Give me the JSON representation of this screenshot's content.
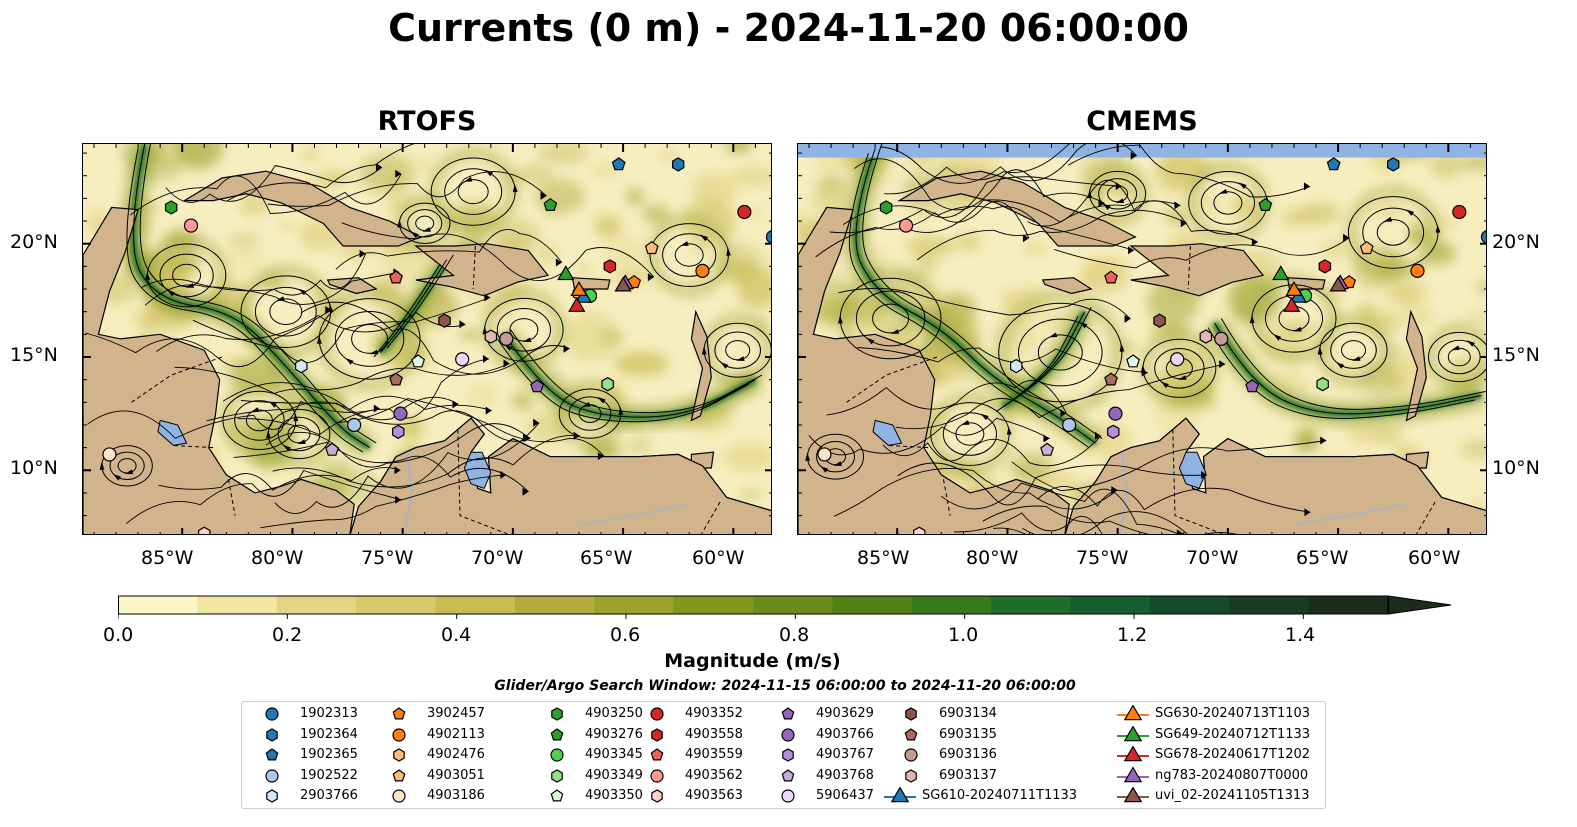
{
  "figure": {
    "title": "Currents (0 m) - 2024-11-20 06:00:00",
    "panels": [
      {
        "title": "RTOFS"
      },
      {
        "title": "CMEMS"
      }
    ],
    "lon_ticks": [
      "85°W",
      "80°W",
      "75°W",
      "70°W",
      "65°W",
      "60°W"
    ],
    "lat_ticks": [
      "20°N",
      "15°N",
      "10°N"
    ],
    "lon_range": [
      -89.5,
      -58.2
    ],
    "lat_range": [
      7.1,
      24.4
    ]
  },
  "colorbar": {
    "label": "Magnitude (m/s)",
    "ticks": [
      "0.0",
      "0.2",
      "0.4",
      "0.6",
      "0.8",
      "1.0",
      "1.2",
      "1.4"
    ],
    "range": [
      0,
      1.5
    ],
    "extend": "max",
    "colors": [
      "#fbf6c7",
      "#f2e6a4",
      "#e6d486",
      "#dac86c",
      "#cbbc52",
      "#b4ac3e",
      "#9aa22c",
      "#83971e",
      "#6a8c18",
      "#528216",
      "#397a1c",
      "#1f6e2c",
      "#145e30",
      "#154a2a",
      "#1a3a22",
      "#1c2c1a"
    ]
  },
  "search_window": "Glider/Argo Search Window: 2024-11-15 06:00:00 to 2024-11-20 06:00:00",
  "colors": {
    "land": "#d2b48c",
    "water_light": "#f7eec0",
    "strong_current": "#1f6e2c",
    "lakes": "#8fb4e3"
  },
  "legend": [
    {
      "label": "1902313",
      "marker": "circle",
      "color": "#1f77b4"
    },
    {
      "label": "1902364",
      "marker": "hexagon",
      "color": "#1f77b4"
    },
    {
      "label": "1902365",
      "marker": "pentagon",
      "color": "#1f77b4"
    },
    {
      "label": "1902522",
      "marker": "circle",
      "color": "#aec7e8"
    },
    {
      "label": "2903766",
      "marker": "hexagon",
      "color": "#d6e8f8"
    },
    {
      "label": "3902457",
      "marker": "pentagon",
      "color": "#ff7f0e"
    },
    {
      "label": "4902113",
      "marker": "circle",
      "color": "#ff7f0e"
    },
    {
      "label": "4902476",
      "marker": "hexagon",
      "color": "#ffbb78"
    },
    {
      "label": "4903051",
      "marker": "pentagon",
      "color": "#ffbb78"
    },
    {
      "label": "4903186",
      "marker": "circle",
      "color": "#ffe4c4"
    },
    {
      "label": "4903250",
      "marker": "hexagon",
      "color": "#2ca02c"
    },
    {
      "label": "4903276",
      "marker": "pentagon",
      "color": "#2ca02c"
    },
    {
      "label": "4903345",
      "marker": "circle",
      "color": "#4fd14f"
    },
    {
      "label": "4903349",
      "marker": "hexagon",
      "color": "#98df8a"
    },
    {
      "label": "4903350",
      "marker": "pentagon",
      "color": "#dcfadc"
    },
    {
      "label": "4903352",
      "marker": "circle",
      "color": "#d62728"
    },
    {
      "label": "4903558",
      "marker": "hexagon",
      "color": "#d62728"
    },
    {
      "label": "4903559",
      "marker": "pentagon",
      "color": "#e8625e"
    },
    {
      "label": "4903562",
      "marker": "circle",
      "color": "#ff9896"
    },
    {
      "label": "4903563",
      "marker": "hexagon",
      "color": "#ffd0ce"
    },
    {
      "label": "4903629",
      "marker": "pentagon",
      "color": "#9467bd"
    },
    {
      "label": "4903766",
      "marker": "circle",
      "color": "#9467bd"
    },
    {
      "label": "4903767",
      "marker": "hexagon",
      "color": "#b58ee0"
    },
    {
      "label": "4903768",
      "marker": "pentagon",
      "color": "#c5b0d5"
    },
    {
      "label": "5906437",
      "marker": "circle",
      "color": "#ead8f8"
    },
    {
      "label": "6903134",
      "marker": "hexagon",
      "color": "#8c564b"
    },
    {
      "label": "6903135",
      "marker": "pentagon",
      "color": "#a86b5e"
    },
    {
      "label": "6903136",
      "marker": "circle",
      "color": "#c49c94"
    },
    {
      "label": "6903137",
      "marker": "hexagon",
      "color": "#e0b8b0"
    },
    {
      "label": "SG610-20240711T1133",
      "marker": "triangle-line",
      "color": "#1f77b4"
    },
    {
      "label": "SG630-20240713T1103",
      "marker": "triangle-line",
      "color": "#ff7f0e"
    },
    {
      "label": "SG649-20240712T1133",
      "marker": "triangle-line",
      "color": "#2ca02c"
    },
    {
      "label": "SG678-20240617T1202",
      "marker": "triangle-line",
      "color": "#d62728"
    },
    {
      "label": "ng783-20240807T0000",
      "marker": "triangle-line",
      "color": "#9467bd"
    },
    {
      "label": "uvi_02-20241105T1313",
      "marker": "triangle-line",
      "color": "#8c564b"
    }
  ],
  "observations": [
    {
      "id": "1902313",
      "lon": -58.2,
      "lat": 20.3
    },
    {
      "id": "1902364",
      "lon": -62.5,
      "lat": 23.5
    },
    {
      "id": "1902365",
      "lon": -65.2,
      "lat": 23.5
    },
    {
      "id": "1902522",
      "lon": -77.2,
      "lat": 12.0
    },
    {
      "id": "2903766",
      "lon": -79.6,
      "lat": 14.6
    },
    {
      "id": "3902457",
      "lon": -64.5,
      "lat": 18.3
    },
    {
      "id": "4902113",
      "lon": -61.4,
      "lat": 18.8
    },
    {
      "id": "4902476",
      "lon": -67.0,
      "lat": 17.8
    },
    {
      "id": "4903051",
      "lon": -63.7,
      "lat": 19.8
    },
    {
      "id": "4903186",
      "lon": -88.3,
      "lat": 10.7
    },
    {
      "id": "4903250",
      "lon": -85.5,
      "lat": 21.6
    },
    {
      "id": "4903276",
      "lon": -68.3,
      "lat": 21.7
    },
    {
      "id": "4903345",
      "lon": -66.5,
      "lat": 17.7
    },
    {
      "id": "4903349",
      "lon": -65.7,
      "lat": 13.8
    },
    {
      "id": "4903350",
      "lon": -74.3,
      "lat": 14.8
    },
    {
      "id": "4903352",
      "lon": -59.5,
      "lat": 21.4
    },
    {
      "id": "4903558",
      "lon": -65.6,
      "lat": 19.0
    },
    {
      "id": "4903559",
      "lon": -75.3,
      "lat": 18.5
    },
    {
      "id": "4903562",
      "lon": -84.6,
      "lat": 20.8
    },
    {
      "id": "4903563",
      "lon": -84.0,
      "lat": 7.2
    },
    {
      "id": "4903629",
      "lon": -68.9,
      "lat": 13.7
    },
    {
      "id": "4903766",
      "lon": -75.1,
      "lat": 12.5
    },
    {
      "id": "4903767",
      "lon": -75.2,
      "lat": 11.7
    },
    {
      "id": "4903768",
      "lon": -78.2,
      "lat": 10.9
    },
    {
      "id": "5906437",
      "lon": -72.3,
      "lat": 14.9
    },
    {
      "id": "6903134",
      "lon": -73.1,
      "lat": 16.6
    },
    {
      "id": "6903135",
      "lon": -75.3,
      "lat": 14.0
    },
    {
      "id": "6903136",
      "lon": -70.3,
      "lat": 15.8
    },
    {
      "id": "6903137",
      "lon": -71.0,
      "lat": 15.9
    },
    {
      "id": "SG610-20240711T1133",
      "lon": -66.8,
      "lat": 17.7
    },
    {
      "id": "SG630-20240713T1103",
      "lon": -67.0,
      "lat": 18.0
    },
    {
      "id": "SG649-20240712T1133",
      "lon": -67.6,
      "lat": 18.7
    },
    {
      "id": "SG678-20240617T1202",
      "lon": -67.1,
      "lat": 17.3
    },
    {
      "id": "ng783-20240807T0000",
      "lon": -64.9,
      "lat": 18.3
    },
    {
      "id": "uvi_02-20241105T1313",
      "lon": -65.0,
      "lat": 18.2
    }
  ]
}
